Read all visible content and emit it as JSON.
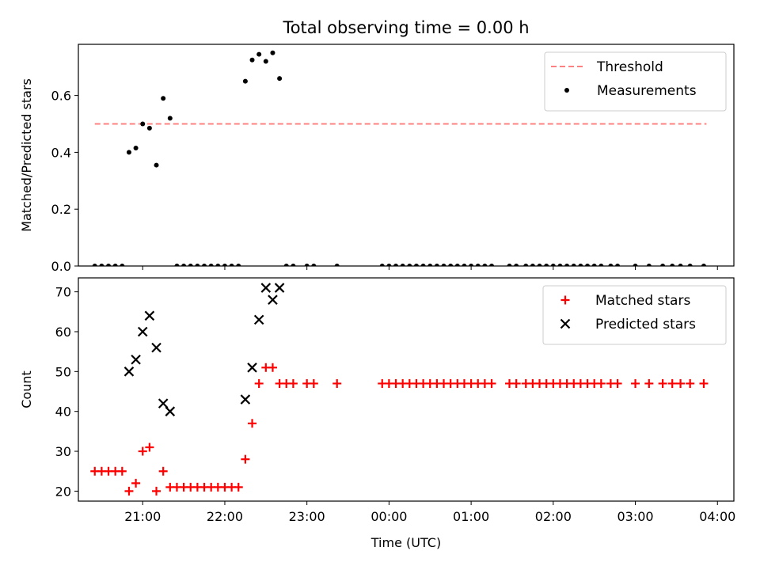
{
  "figure": {
    "title": "Total observing time = 0.00 h"
  },
  "chart_data": [
    {
      "type": "scatter",
      "ylabel": "Matched/Predicted stars",
      "xlabel": "",
      "x_is_time": true,
      "xlim": [
        "20:13",
        "04:12"
      ],
      "ylim": [
        0,
        0.78
      ],
      "yticks": [
        0.0,
        0.2,
        0.4,
        0.6
      ],
      "ytick_labels": [
        "0.0",
        "0.2",
        "0.4",
        "0.6"
      ],
      "xticks": [
        "21:00",
        "22:00",
        "23:00",
        "00:00",
        "01:00",
        "02:00",
        "03:00",
        "04:00"
      ],
      "show_xtick_labels": false,
      "grid": false,
      "legend_position": "top-right",
      "threshold": {
        "name": "Threshold",
        "value": 0.5,
        "x_start": "20:25",
        "x_end": "03:52",
        "color": "#ff8080",
        "style": "dashed"
      },
      "series": [
        {
          "name": "Measurements",
          "marker": "dot",
          "color": "#000000",
          "points": [
            [
              "20:25",
              0.0
            ],
            [
              "20:30",
              0.0
            ],
            [
              "20:35",
              0.0
            ],
            [
              "20:40",
              0.0
            ],
            [
              "20:45",
              0.0
            ],
            [
              "20:50",
              0.4
            ],
            [
              "20:55",
              0.415
            ],
            [
              "21:00",
              0.5
            ],
            [
              "21:05",
              0.485
            ],
            [
              "21:10",
              0.355
            ],
            [
              "21:15",
              0.59
            ],
            [
              "21:20",
              0.52
            ],
            [
              "21:25",
              0.0
            ],
            [
              "21:30",
              0.0
            ],
            [
              "21:35",
              0.0
            ],
            [
              "21:40",
              0.0
            ],
            [
              "21:45",
              0.0
            ],
            [
              "21:50",
              0.0
            ],
            [
              "21:55",
              0.0
            ],
            [
              "22:00",
              0.0
            ],
            [
              "22:05",
              0.0
            ],
            [
              "22:10",
              0.0
            ],
            [
              "22:15",
              0.65
            ],
            [
              "22:20",
              0.725
            ],
            [
              "22:25",
              0.745
            ],
            [
              "22:30",
              0.72
            ],
            [
              "22:35",
              0.75
            ],
            [
              "22:40",
              0.66
            ],
            [
              "22:45",
              0.0
            ],
            [
              "22:50",
              0.0
            ],
            [
              "23:00",
              0.0
            ],
            [
              "23:05",
              0.0
            ],
            [
              "23:22",
              0.0
            ],
            [
              "23:55",
              0.0
            ],
            [
              "00:00",
              0.0
            ],
            [
              "00:05",
              0.0
            ],
            [
              "00:10",
              0.0
            ],
            [
              "00:15",
              0.0
            ],
            [
              "00:20",
              0.0
            ],
            [
              "00:25",
              0.0
            ],
            [
              "00:30",
              0.0
            ],
            [
              "00:35",
              0.0
            ],
            [
              "00:40",
              0.0
            ],
            [
              "00:45",
              0.0
            ],
            [
              "00:50",
              0.0
            ],
            [
              "00:55",
              0.0
            ],
            [
              "01:00",
              0.0
            ],
            [
              "01:05",
              0.0
            ],
            [
              "01:10",
              0.0
            ],
            [
              "01:15",
              0.0
            ],
            [
              "01:28",
              0.0
            ],
            [
              "01:33",
              0.0
            ],
            [
              "01:40",
              0.0
            ],
            [
              "01:45",
              0.0
            ],
            [
              "01:50",
              0.0
            ],
            [
              "01:55",
              0.0
            ],
            [
              "02:00",
              0.0
            ],
            [
              "02:05",
              0.0
            ],
            [
              "02:10",
              0.0
            ],
            [
              "02:15",
              0.0
            ],
            [
              "02:20",
              0.0
            ],
            [
              "02:25",
              0.0
            ],
            [
              "02:30",
              0.0
            ],
            [
              "02:35",
              0.0
            ],
            [
              "02:42",
              0.0
            ],
            [
              "02:47",
              0.0
            ],
            [
              "03:00",
              0.0
            ],
            [
              "03:10",
              0.0
            ],
            [
              "03:20",
              0.0
            ],
            [
              "03:27",
              0.0
            ],
            [
              "03:33",
              0.0
            ],
            [
              "03:40",
              0.0
            ],
            [
              "03:50",
              0.0
            ]
          ]
        }
      ]
    },
    {
      "type": "scatter",
      "ylabel": "Count",
      "xlabel": "Time (UTC)",
      "x_is_time": true,
      "xlim": [
        "20:13",
        "04:12"
      ],
      "ylim": [
        17.5,
        73.5
      ],
      "yticks": [
        20,
        30,
        40,
        50,
        60,
        70
      ],
      "ytick_labels": [
        "20",
        "30",
        "40",
        "50",
        "60",
        "70"
      ],
      "xticks": [
        "21:00",
        "22:00",
        "23:00",
        "00:00",
        "01:00",
        "02:00",
        "03:00",
        "04:00"
      ],
      "xtick_labels": [
        "21:00",
        "22:00",
        "23:00",
        "00:00",
        "01:00",
        "02:00",
        "03:00",
        "04:00"
      ],
      "show_xtick_labels": true,
      "grid": false,
      "legend_position": "top-right",
      "series": [
        {
          "name": "Matched stars",
          "marker": "plus",
          "color": "#ff0000",
          "points": [
            [
              "20:25",
              25
            ],
            [
              "20:30",
              25
            ],
            [
              "20:35",
              25
            ],
            [
              "20:40",
              25
            ],
            [
              "20:45",
              25
            ],
            [
              "20:50",
              20
            ],
            [
              "20:55",
              22
            ],
            [
              "21:00",
              30
            ],
            [
              "21:05",
              31
            ],
            [
              "21:10",
              20
            ],
            [
              "21:15",
              25
            ],
            [
              "21:20",
              21
            ],
            [
              "21:25",
              21
            ],
            [
              "21:30",
              21
            ],
            [
              "21:35",
              21
            ],
            [
              "21:40",
              21
            ],
            [
              "21:45",
              21
            ],
            [
              "21:50",
              21
            ],
            [
              "21:55",
              21
            ],
            [
              "22:00",
              21
            ],
            [
              "22:05",
              21
            ],
            [
              "22:10",
              21
            ],
            [
              "22:15",
              28
            ],
            [
              "22:20",
              37
            ],
            [
              "22:25",
              47
            ],
            [
              "22:30",
              51
            ],
            [
              "22:35",
              51
            ],
            [
              "22:40",
              47
            ],
            [
              "22:45",
              47
            ],
            [
              "22:50",
              47
            ],
            [
              "23:00",
              47
            ],
            [
              "23:05",
              47
            ],
            [
              "23:22",
              47
            ],
            [
              "23:55",
              47
            ],
            [
              "00:00",
              47
            ],
            [
              "00:05",
              47
            ],
            [
              "00:10",
              47
            ],
            [
              "00:15",
              47
            ],
            [
              "00:20",
              47
            ],
            [
              "00:25",
              47
            ],
            [
              "00:30",
              47
            ],
            [
              "00:35",
              47
            ],
            [
              "00:40",
              47
            ],
            [
              "00:45",
              47
            ],
            [
              "00:50",
              47
            ],
            [
              "00:55",
              47
            ],
            [
              "01:00",
              47
            ],
            [
              "01:05",
              47
            ],
            [
              "01:10",
              47
            ],
            [
              "01:15",
              47
            ],
            [
              "01:28",
              47
            ],
            [
              "01:33",
              47
            ],
            [
              "01:40",
              47
            ],
            [
              "01:45",
              47
            ],
            [
              "01:50",
              47
            ],
            [
              "01:55",
              47
            ],
            [
              "02:00",
              47
            ],
            [
              "02:05",
              47
            ],
            [
              "02:10",
              47
            ],
            [
              "02:15",
              47
            ],
            [
              "02:20",
              47
            ],
            [
              "02:25",
              47
            ],
            [
              "02:30",
              47
            ],
            [
              "02:35",
              47
            ],
            [
              "02:42",
              47
            ],
            [
              "02:47",
              47
            ],
            [
              "03:00",
              47
            ],
            [
              "03:10",
              47
            ],
            [
              "03:20",
              47
            ],
            [
              "03:27",
              47
            ],
            [
              "03:33",
              47
            ],
            [
              "03:40",
              47
            ],
            [
              "03:50",
              47
            ]
          ]
        },
        {
          "name": "Predicted stars",
          "marker": "x",
          "color": "#000000",
          "points": [
            [
              "20:50",
              50
            ],
            [
              "20:55",
              53
            ],
            [
              "21:00",
              60
            ],
            [
              "21:05",
              64
            ],
            [
              "21:10",
              56
            ],
            [
              "21:15",
              42
            ],
            [
              "21:20",
              40
            ],
            [
              "22:15",
              43
            ],
            [
              "22:20",
              51
            ],
            [
              "22:25",
              63
            ],
            [
              "22:30",
              71
            ],
            [
              "22:35",
              68
            ],
            [
              "22:40",
              71
            ]
          ]
        }
      ]
    }
  ]
}
